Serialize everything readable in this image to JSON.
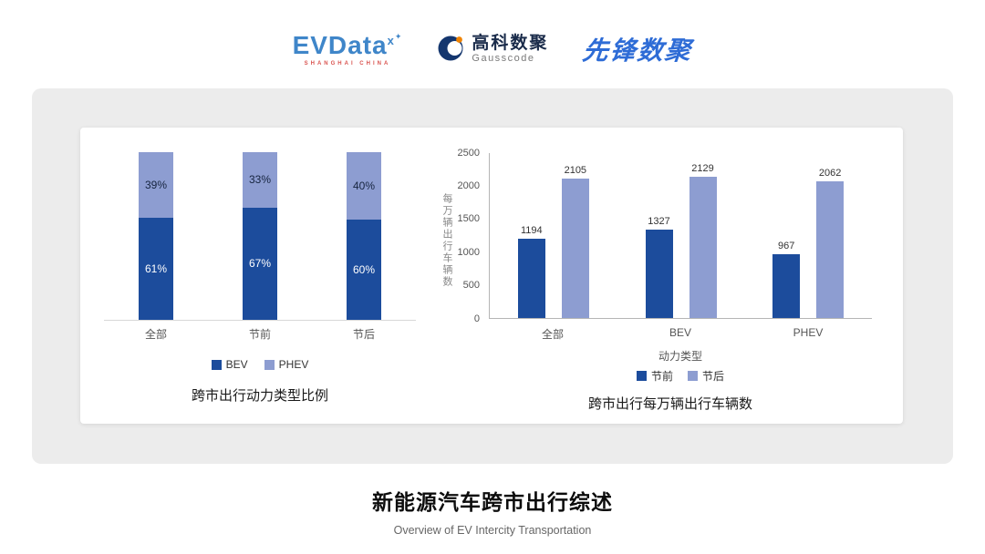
{
  "header": {
    "evdata": {
      "text": "EVData",
      "sup": "x",
      "star": "✦",
      "tagline": "SHANGHAI CHINA"
    },
    "gausscode": {
      "cn": "高科数聚",
      "en": "Gausscode"
    },
    "pioneer": {
      "text": "先锋数聚"
    }
  },
  "colors": {
    "primary": "#1c4c9c",
    "secondary": "#8d9dd1"
  },
  "chart_data": [
    {
      "type": "bar",
      "variant": "stacked-100",
      "title": "跨市出行动力类型比例",
      "categories": [
        "全部",
        "节前",
        "节后"
      ],
      "series": [
        {
          "name": "BEV",
          "values": [
            61,
            67,
            60
          ],
          "color": "#1c4c9c",
          "label_color": "#ffffff"
        },
        {
          "name": "PHEV",
          "values": [
            39,
            33,
            40
          ],
          "color": "#8d9dd1",
          "label_color": "#16243f"
        }
      ],
      "value_suffix": "%",
      "legend": [
        "BEV",
        "PHEV"
      ],
      "legend_position": "bottom",
      "grid": false
    },
    {
      "type": "bar",
      "variant": "grouped",
      "title": "跨市出行每万辆出行车辆数",
      "categories": [
        "全部",
        "BEV",
        "PHEV"
      ],
      "series": [
        {
          "name": "节前",
          "values": [
            1194,
            1327,
            967
          ],
          "color": "#1c4c9c"
        },
        {
          "name": "节后",
          "values": [
            2105,
            2129,
            2062
          ],
          "color": "#8d9dd1"
        }
      ],
      "xlabel": "动力类型",
      "ylabel": "每万辆出行车辆数",
      "ylim": [
        0,
        2500
      ],
      "yticks": [
        0,
        500,
        1000,
        1500,
        2000,
        2500
      ],
      "legend": [
        "节前",
        "节后"
      ],
      "legend_position": "bottom",
      "grid": false
    }
  ],
  "footer": {
    "title": "新能源汽车跨市出行综述",
    "subtitle": "Overview of EV Intercity Transportation"
  }
}
